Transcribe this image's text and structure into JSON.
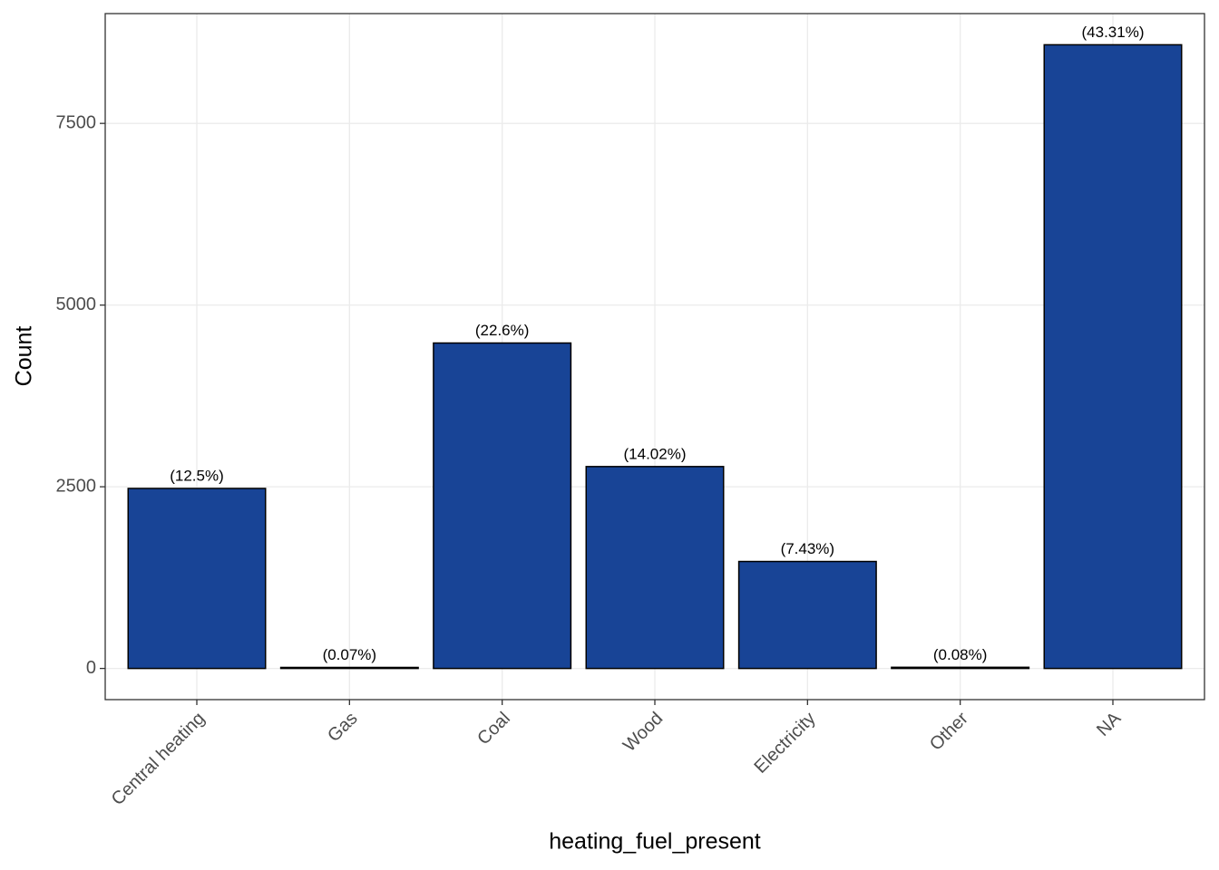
{
  "chart_data": {
    "type": "bar",
    "x_label": "heating_fuel_present",
    "y_label": "Count",
    "categories": [
      "Central heating",
      "Gas",
      "Coal",
      "Wood",
      "Electricity",
      "Other",
      "NA"
    ],
    "values": [
      2477,
      14,
      4478,
      2778,
      1472,
      16,
      8582
    ],
    "percents": [
      12.5,
      0.07,
      22.6,
      14.02,
      7.43,
      0.08,
      43.31
    ],
    "percent_labels": [
      "(12.5%)",
      "(0.07%)",
      "(22.6%)",
      "(14.02%)",
      "(7.43%)",
      "(0.08%)",
      "(43.31%)"
    ],
    "color": "#184496",
    "ylim": [
      -429,
      9011
    ],
    "yticks": [
      0,
      2500,
      5000,
      7500
    ],
    "grid": true
  }
}
